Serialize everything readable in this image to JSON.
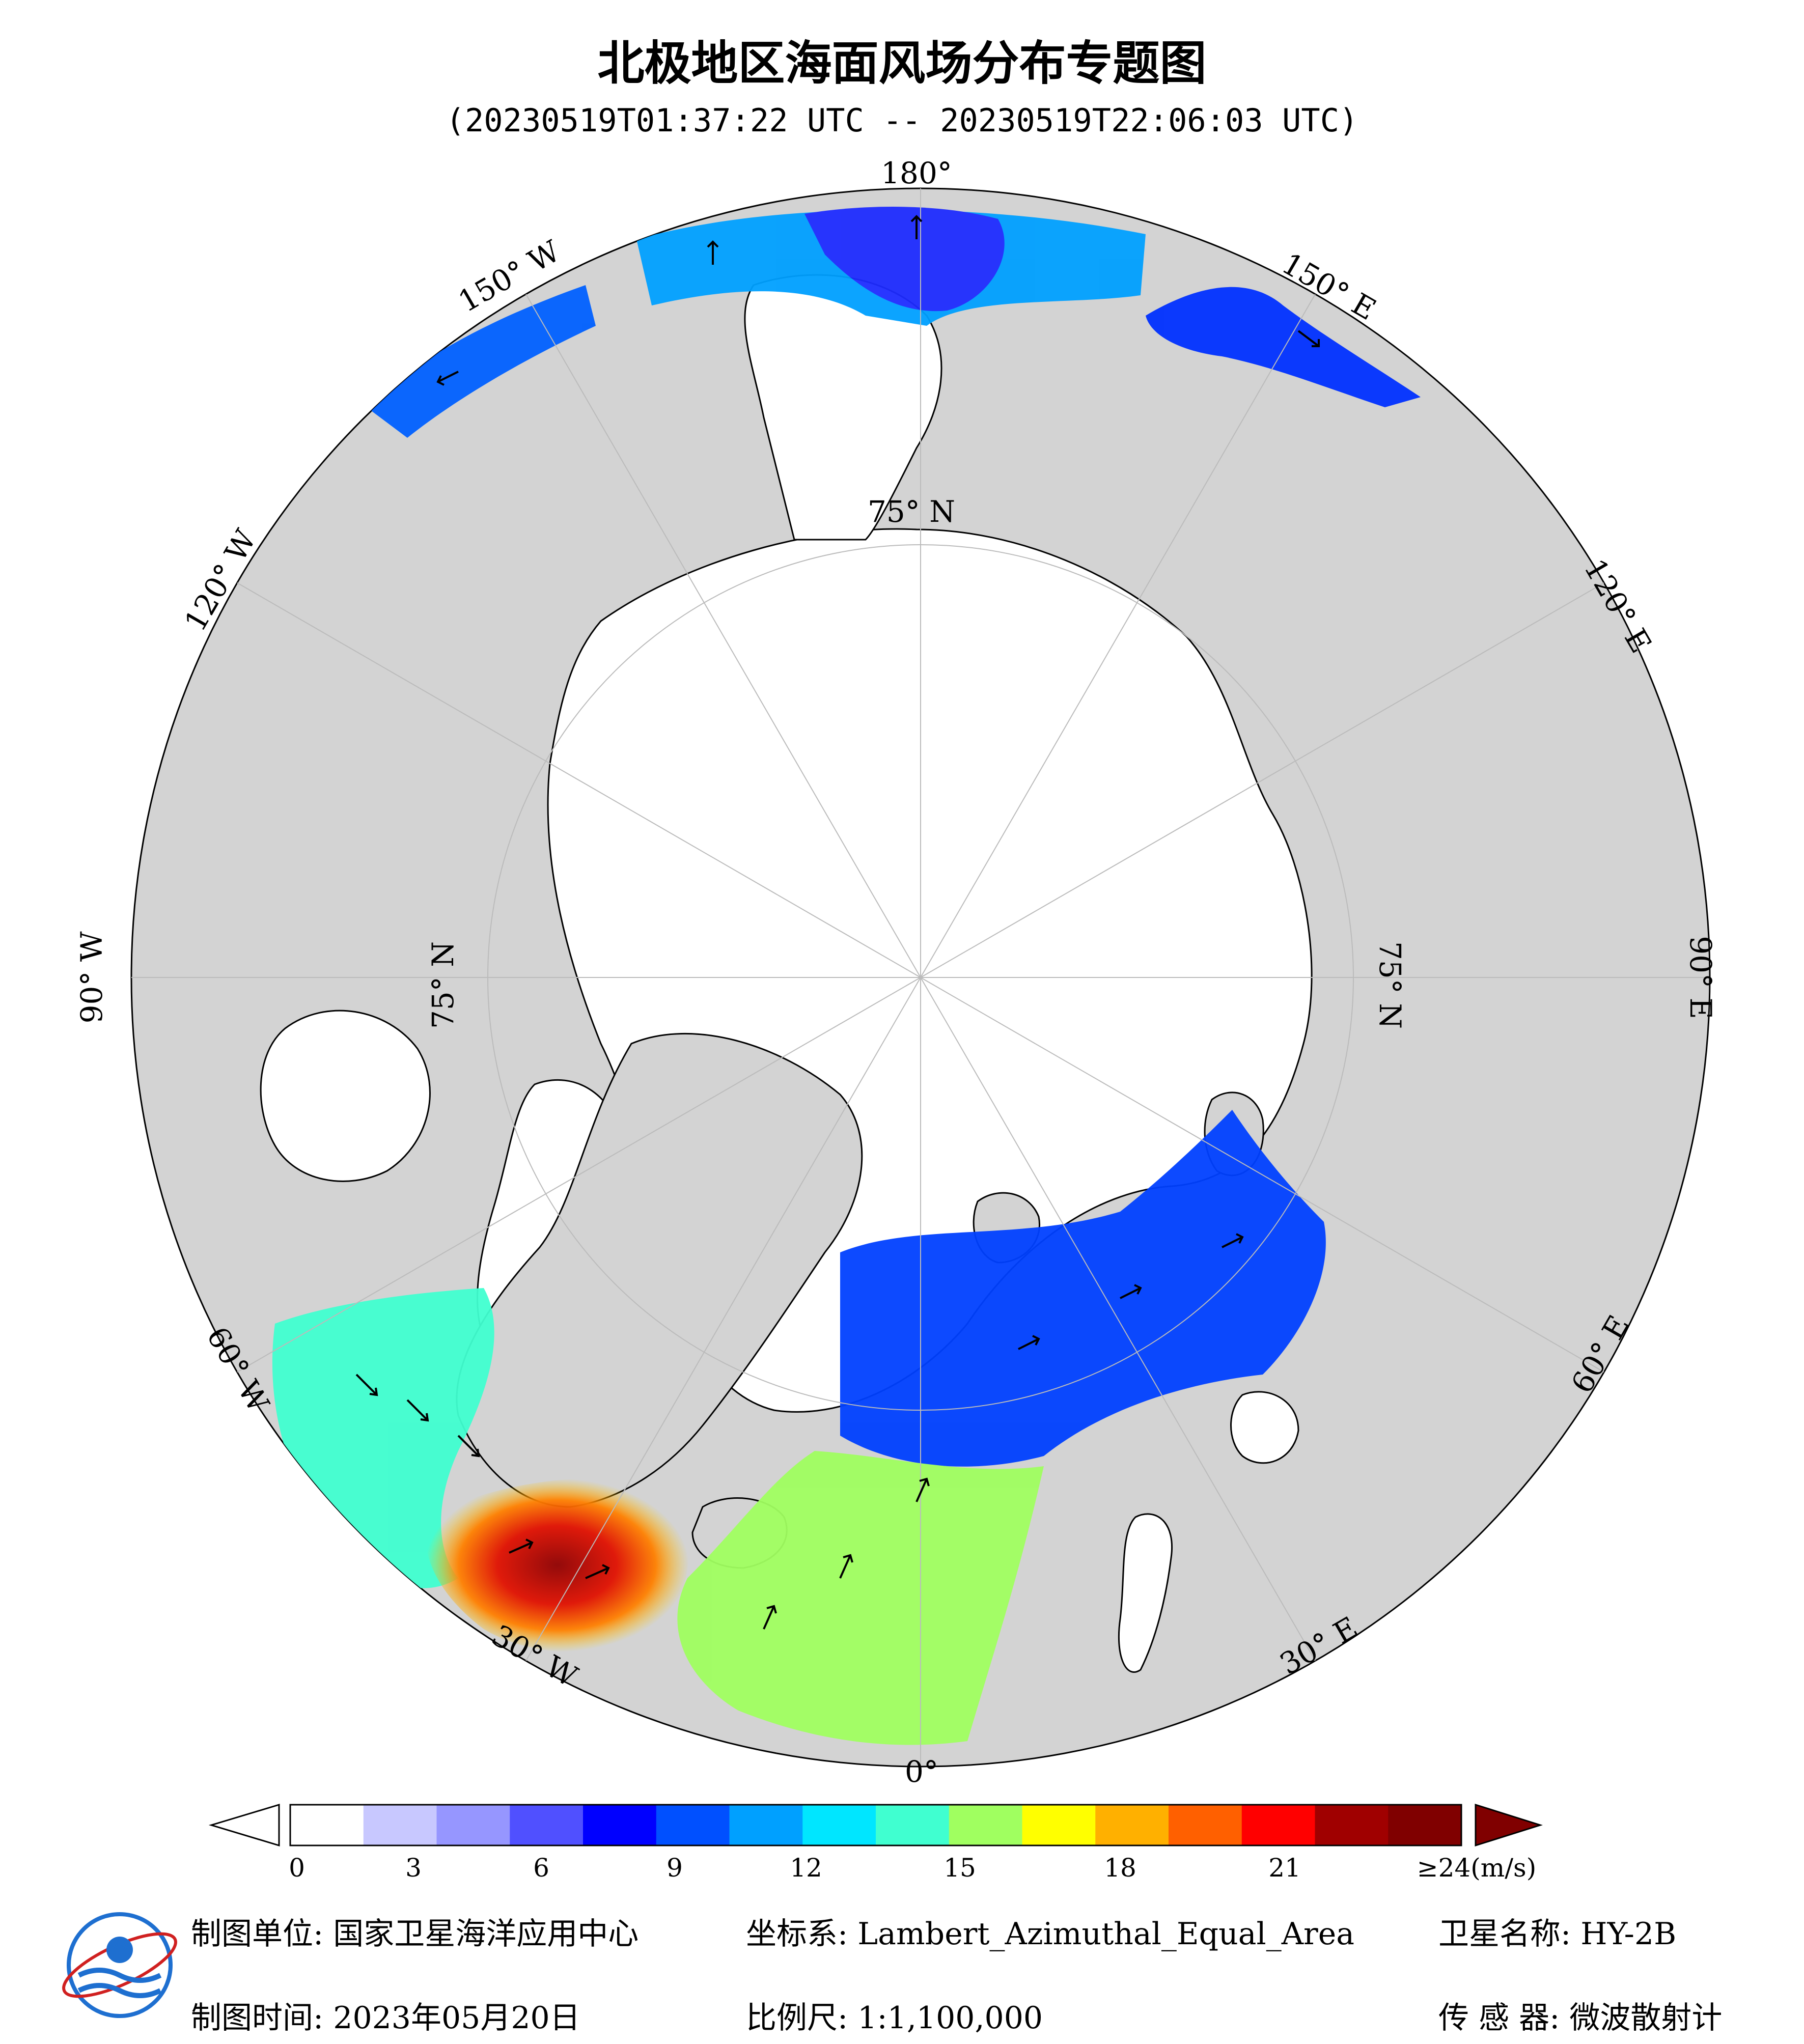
{
  "header": {
    "title": "北极地区海面风场分布专题图",
    "subtitle": "(20230519T01:37:22 UTC -- 20230519T22:06:03 UTC)"
  },
  "map": {
    "projection": "Lambert_Azimuthal_Equal_Area",
    "center": "North Pole",
    "longitude_labels": [
      "180°",
      "150° E",
      "120° E",
      "90° E",
      "60° E",
      "30° E",
      "0°",
      "30° W",
      "60° W",
      "90° W",
      "120° W",
      "150° W"
    ],
    "latitude_label": "75° N",
    "colors": {
      "land": "#d3d3d3",
      "ocean": "#ffffff",
      "graticule": "#bbbbbb",
      "coastline": "#000000"
    }
  },
  "colorbar": {
    "ticks": [
      "0",
      "3",
      "6",
      "9",
      "12",
      "15",
      "18",
      "21",
      "≥24(m/s)"
    ],
    "min": 0,
    "max": 24,
    "unit": "m/s",
    "colors": [
      "#ffffff",
      "#c8c8ff",
      "#9696ff",
      "#5050ff",
      "#0000ff",
      "#0050ff",
      "#00a0ff",
      "#00e6ff",
      "#40ffd0",
      "#a0ff60",
      "#ffff00",
      "#ffb000",
      "#ff6000",
      "#ff0000",
      "#a00000",
      "#800000"
    ]
  },
  "footer": {
    "unit_label": "制图单位: 国家卫星海洋应用中心",
    "coord_label": "坐标系: Lambert_Azimuthal_Equal_Area",
    "satellite_label": "卫星名称: HY-2B",
    "date_label": "制图时间: 2023年05月20日",
    "scale_label": "比例尺: 1:1,100,000",
    "sensor_label": "传 感 器: 微波散射计"
  }
}
